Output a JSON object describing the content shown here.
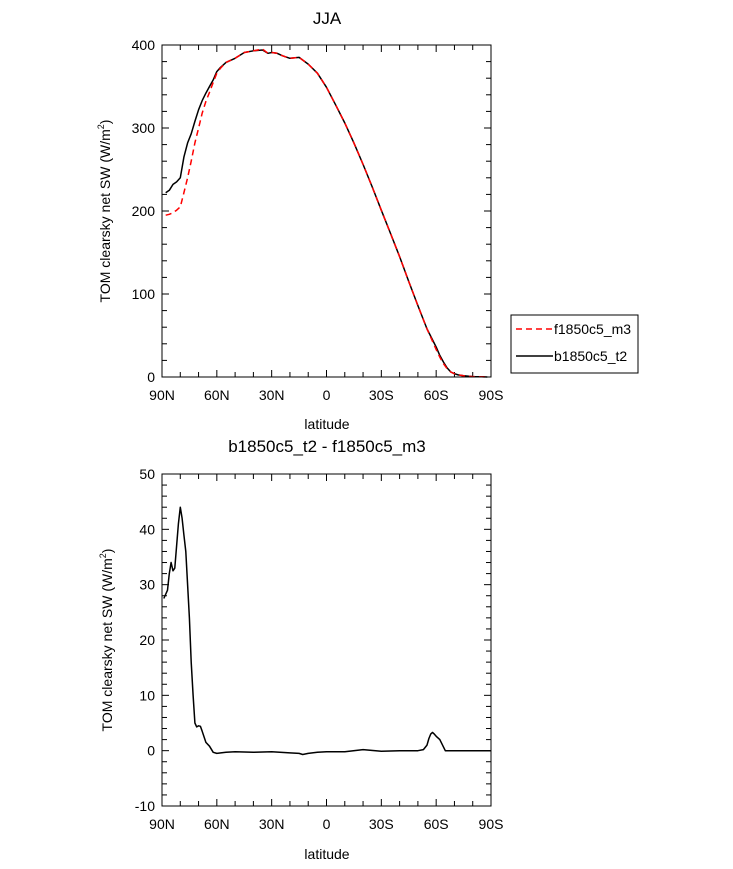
{
  "chart_data": [
    {
      "type": "line",
      "title": "JJA",
      "xlabel": "latitude",
      "ylabel": "TOM clearsky net SW (W/m",
      "ylabel_sup": "2",
      "ylabel_close": ")",
      "x_direction": "north-to-south",
      "xlim": [
        90,
        -90
      ],
      "ylim": [
        0,
        400
      ],
      "xticks": [
        {
          "value": 90,
          "label": "90N"
        },
        {
          "value": 60,
          "label": "60N"
        },
        {
          "value": 30,
          "label": "30N"
        },
        {
          "value": 0,
          "label": "0"
        },
        {
          "value": -30,
          "label": "30S"
        },
        {
          "value": -60,
          "label": "60S"
        },
        {
          "value": -90,
          "label": "90S"
        }
      ],
      "yticks": [
        {
          "value": 0,
          "label": "0"
        },
        {
          "value": 100,
          "label": "100"
        },
        {
          "value": 200,
          "label": "200"
        },
        {
          "value": 300,
          "label": "300"
        },
        {
          "value": 400,
          "label": "400"
        }
      ],
      "legend": {
        "position": "right",
        "entries": [
          {
            "name": "f1850c5_m3",
            "color": "#ff0000",
            "style": "dashed"
          },
          {
            "name": "b1850c5_t2",
            "color": "#000000",
            "style": "solid"
          }
        ]
      },
      "series": [
        {
          "name": "f1850c5_m3",
          "color": "#ff0000",
          "style": "dashed",
          "x": [
            88,
            86,
            84,
            82,
            80,
            78,
            76,
            74,
            72,
            70,
            68,
            66,
            64,
            62,
            60,
            58,
            55,
            50,
            45,
            40,
            35,
            32,
            30,
            27,
            24,
            20,
            15,
            10,
            5,
            0,
            -5,
            -10,
            -15,
            -20,
            -25,
            -30,
            -35,
            -40,
            -45,
            -50,
            -55,
            -60,
            -62,
            -64,
            -66,
            -68,
            -70,
            -72,
            -75,
            -80,
            -85,
            -88
          ],
          "y": [
            195,
            196,
            198,
            201,
            205,
            222,
            240,
            260,
            282,
            300,
            318,
            332,
            343,
            355,
            366,
            372,
            379,
            384,
            391,
            393,
            395,
            390,
            391,
            390,
            387,
            384,
            385,
            377,
            366,
            349,
            328,
            306,
            282,
            256,
            229,
            201,
            173,
            145,
            115,
            86,
            58,
            33,
            24,
            16,
            10,
            6,
            4,
            2.5,
            1.5,
            0.5,
            0.2,
            0
          ]
        },
        {
          "name": "b1850c5_t2",
          "color": "#000000",
          "style": "solid",
          "x": [
            88,
            86,
            84,
            82,
            80,
            78,
            76,
            74,
            72,
            70,
            68,
            66,
            64,
            62,
            60,
            58,
            55,
            50,
            45,
            40,
            35,
            32,
            30,
            27,
            24,
            20,
            15,
            10,
            5,
            0,
            -5,
            -10,
            -15,
            -20,
            -25,
            -30,
            -35,
            -40,
            -45,
            -50,
            -55,
            -60,
            -62,
            -64,
            -66,
            -68,
            -70,
            -72,
            -75,
            -80,
            -85,
            -88
          ],
          "y": [
            222,
            225,
            232,
            235,
            240,
            265,
            282,
            293,
            308,
            322,
            333,
            342,
            350,
            358,
            368,
            373,
            379,
            384,
            391,
            393,
            394,
            390,
            391,
            390,
            387,
            384,
            385,
            377,
            366,
            349,
            328,
            306,
            282,
            256,
            229,
            201,
            173,
            145,
            115,
            86,
            58,
            36,
            26,
            18,
            11,
            6,
            4,
            2.5,
            1.5,
            0.5,
            0.2,
            0
          ]
        }
      ]
    },
    {
      "type": "line",
      "title": "b1850c5_t2 - f1850c5_m3",
      "xlabel": "latitude",
      "ylabel": "TOM clearsky net SW (W/m",
      "ylabel_sup": "2",
      "ylabel_close": ")",
      "x_direction": "north-to-south",
      "xlim": [
        90,
        -90
      ],
      "ylim": [
        -10,
        50
      ],
      "xticks": [
        {
          "value": 90,
          "label": "90N"
        },
        {
          "value": 60,
          "label": "60N"
        },
        {
          "value": 30,
          "label": "30N"
        },
        {
          "value": 0,
          "label": "0"
        },
        {
          "value": -30,
          "label": "30S"
        },
        {
          "value": -60,
          "label": "60S"
        },
        {
          "value": -90,
          "label": "90S"
        }
      ],
      "yticks": [
        {
          "value": -10,
          "label": "-10"
        },
        {
          "value": 0,
          "label": "0"
        },
        {
          "value": 10,
          "label": "10"
        },
        {
          "value": 20,
          "label": "20"
        },
        {
          "value": 30,
          "label": "30"
        },
        {
          "value": 40,
          "label": "40"
        },
        {
          "value": 50,
          "label": "50"
        }
      ],
      "series": [
        {
          "name": "b1850c5_t2 - f1850c5_m3",
          "color": "#000000",
          "style": "solid",
          "x": [
            89,
            87,
            86,
            85,
            84,
            83,
            82,
            81,
            80,
            79,
            78,
            77,
            76,
            75,
            74,
            73,
            72,
            71,
            70,
            69,
            68,
            66,
            64,
            62,
            60,
            55,
            50,
            40,
            30,
            20,
            15,
            13,
            10,
            5,
            0,
            -10,
            -20,
            -30,
            -40,
            -50,
            -53,
            -55,
            -56,
            -57,
            -58,
            -59,
            -60,
            -62,
            -65,
            -70,
            -80,
            -90
          ],
          "y": [
            27.5,
            29,
            32,
            34,
            32.5,
            33,
            37,
            41,
            44,
            42,
            39,
            36,
            30,
            24,
            16,
            10,
            5,
            4.3,
            4.5,
            4.4,
            3.5,
            1.5,
            0.8,
            -0.3,
            -0.5,
            -0.3,
            -0.2,
            -0.3,
            -0.2,
            -0.4,
            -0.5,
            -0.7,
            -0.5,
            -0.3,
            -0.2,
            -0.2,
            0.2,
            -0.1,
            0,
            0,
            0.2,
            1.0,
            2.2,
            3.0,
            3.3,
            3.0,
            2.6,
            2.0,
            0,
            0,
            0,
            0
          ]
        }
      ]
    }
  ]
}
